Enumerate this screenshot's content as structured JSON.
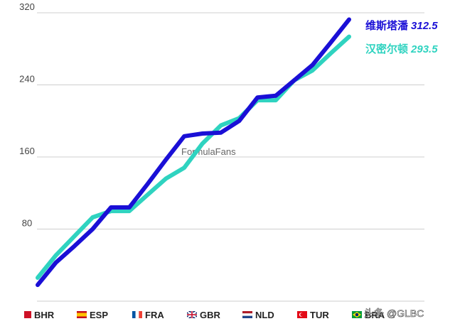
{
  "chart_data": {
    "type": "line",
    "title": "",
    "xlabel": "",
    "ylabel": "",
    "ylim": [
      0,
      320
    ],
    "yticks": [
      80,
      160,
      240,
      320
    ],
    "grid": true,
    "x": [
      1,
      2,
      3,
      4,
      5,
      6,
      7,
      8,
      9,
      10,
      11,
      12,
      13,
      14,
      15,
      16,
      17,
      18
    ],
    "xtick_labels": [
      {
        "at": 1,
        "flag": "flag-bahrain",
        "label": "BHR"
      },
      {
        "at": 4,
        "flag": "flag-spain",
        "label": "ESP"
      },
      {
        "at": 7,
        "flag": "flag-france",
        "label": "FRA"
      },
      {
        "at": 10,
        "flag": "flag-uk",
        "label": "GBR"
      },
      {
        "at": 13,
        "flag": "flag-netherlands",
        "label": "NLD"
      },
      {
        "at": 16,
        "flag": "flag-turkey",
        "label": "TUR"
      },
      {
        "at": 18,
        "flag": "flag-brazil",
        "label": "BRA"
      }
    ],
    "series": [
      {
        "name": "维斯塔潘",
        "final_label": "312.5",
        "color": "#1a0fd6",
        "values": [
          18,
          43,
          61,
          80,
          104,
          104,
          130,
          157,
          183,
          186,
          187,
          200,
          226,
          228,
          245,
          262,
          287,
          312.5
        ]
      },
      {
        "name": "汉密尔顿",
        "final_label": "293.5",
        "color": "#2fd3c0",
        "values": [
          26,
          51,
          72,
          93,
          100,
          100,
          118,
          136,
          148,
          175,
          195,
          203,
          223,
          223,
          245,
          256,
          275,
          293.5
        ]
      }
    ],
    "watermark": "FormulaFans",
    "source": "头条 @GLBC"
  }
}
